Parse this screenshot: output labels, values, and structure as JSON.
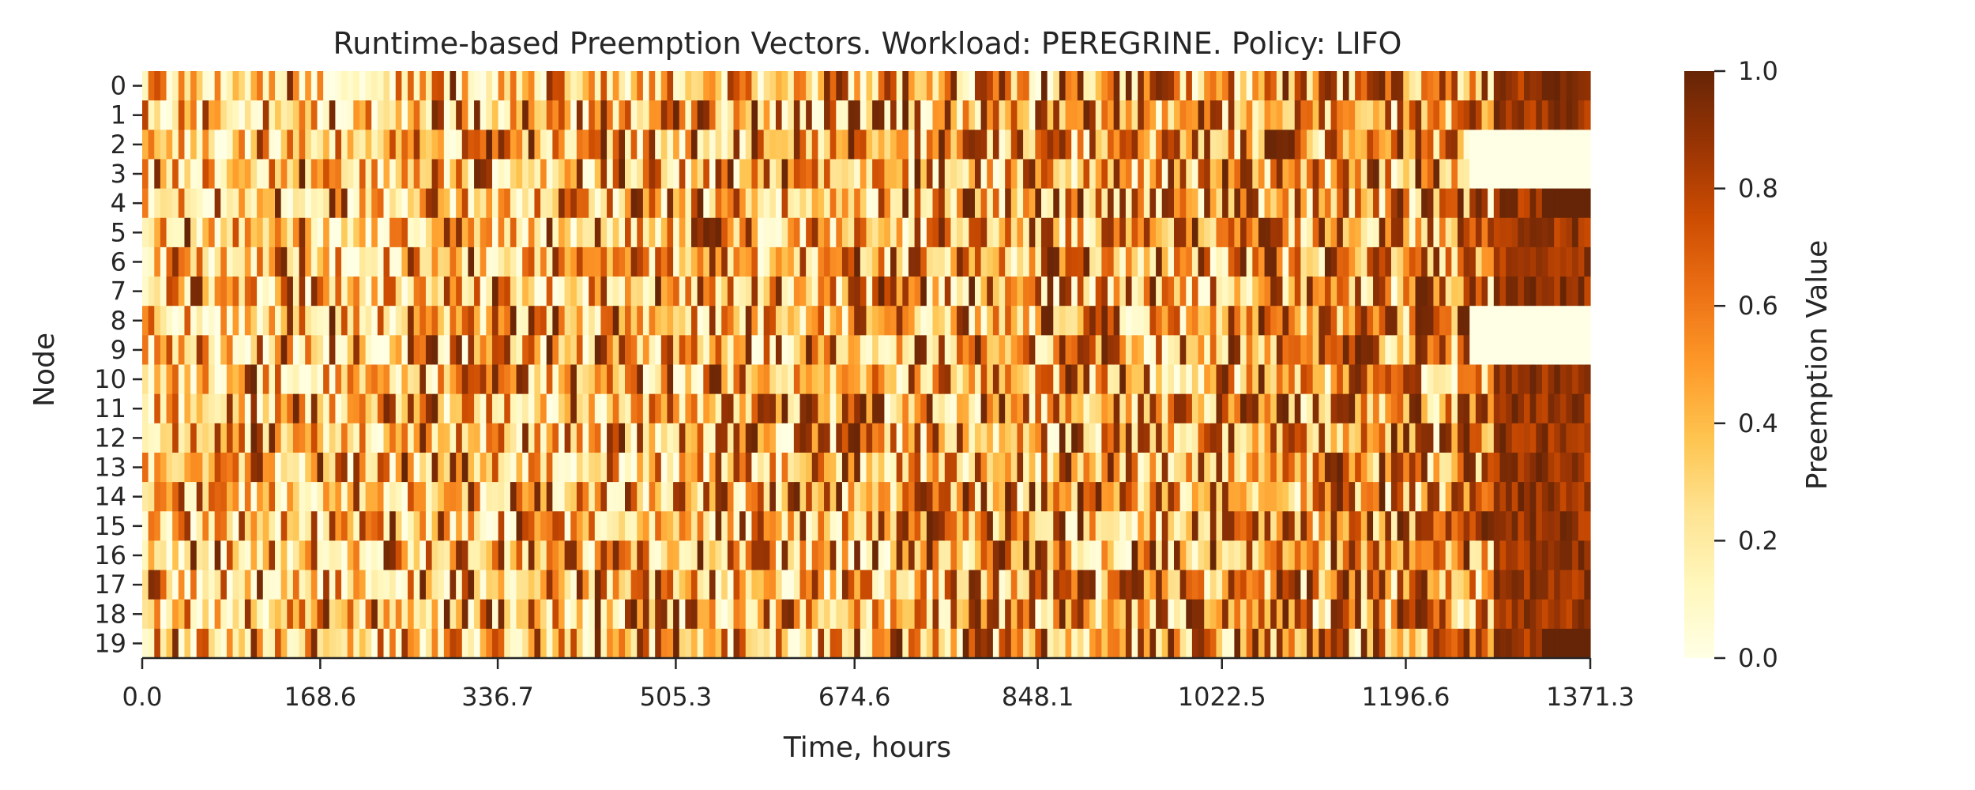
{
  "chart_data": {
    "type": "heatmap",
    "title": "Runtime-based Preemption Vectors. Workload: PEREGRINE. Policy: LIFO",
    "xlabel": "Time, hours",
    "ylabel": "Node",
    "x_range": [
      0.0,
      1371.3
    ],
    "x_ticks": [
      "0.0",
      "168.6",
      "336.7",
      "505.3",
      "674.6",
      "848.1",
      "1022.5",
      "1196.6",
      "1371.3"
    ],
    "x_tick_values": [
      0.0,
      168.6,
      336.7,
      505.3,
      674.6,
      848.1,
      1022.5,
      1196.6,
      1371.3
    ],
    "rows": [
      "0",
      "1",
      "2",
      "3",
      "4",
      "5",
      "6",
      "7",
      "8",
      "9",
      "10",
      "11",
      "12",
      "13",
      "14",
      "15",
      "16",
      "17",
      "18",
      "19"
    ],
    "value_range": [
      0.0,
      1.0
    ],
    "colormap": "YlOrBr",
    "colors": [
      "#ffffe5",
      "#fff7bc",
      "#fee391",
      "#fec44f",
      "#fe9929",
      "#ec7014",
      "#cc4c02",
      "#993404",
      "#662506"
    ],
    "colorbar": {
      "label": "Preemption Value",
      "ticks": [
        "0.0",
        "0.2",
        "0.4",
        "0.6",
        "0.8",
        "1.0"
      ],
      "tick_values": [
        0.0,
        0.2,
        0.4,
        0.6,
        0.8,
        1.0
      ]
    },
    "n_time_bins": 240,
    "sample_cells": [
      {
        "node": "2",
        "x_from": 1256.0,
        "x_to": 1371.3,
        "value": 0.0
      },
      {
        "node": "3",
        "x_from": 1256.0,
        "x_to": 1371.3,
        "value": 0.0
      },
      {
        "node": "8",
        "x_from": 1256.0,
        "x_to": 1371.3,
        "value": 0.0
      },
      {
        "node": "9",
        "x_from": 1256.0,
        "x_to": 1371.3,
        "value": 0.0
      },
      {
        "node": "4",
        "x_from": 1325.0,
        "x_to": 1371.3,
        "value": 1.0
      },
      {
        "node": "19",
        "x_from": 1325.0,
        "x_to": 1371.3,
        "value": 1.0
      }
    ]
  }
}
